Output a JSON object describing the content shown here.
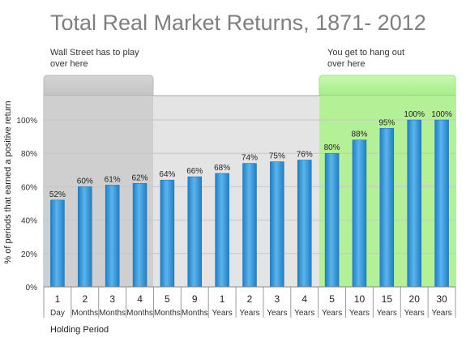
{
  "chart_data": {
    "type": "bar",
    "title": "Total Real Market Returns, 1871- 2012",
    "ylabel": "% of periods that earned a positive return",
    "xlabel": "Holding Period",
    "ylim": [
      0,
      100
    ],
    "y_ticks": [
      "0%",
      "20%",
      "40%",
      "60%",
      "80%",
      "100%"
    ],
    "grid": true,
    "categories": [
      {
        "num": "1",
        "unit": "Day"
      },
      {
        "num": "2",
        "unit": "Months"
      },
      {
        "num": "3",
        "unit": "Months"
      },
      {
        "num": "4",
        "unit": "Months"
      },
      {
        "num": "5",
        "unit": "Months"
      },
      {
        "num": "9",
        "unit": "Months"
      },
      {
        "num": "1",
        "unit": "Years"
      },
      {
        "num": "2",
        "unit": "Years"
      },
      {
        "num": "3",
        "unit": "Years"
      },
      {
        "num": "4",
        "unit": "Years"
      },
      {
        "num": "5",
        "unit": "Years"
      },
      {
        "num": "10",
        "unit": "Years"
      },
      {
        "num": "15",
        "unit": "Years"
      },
      {
        "num": "20",
        "unit": "Years"
      },
      {
        "num": "30",
        "unit": "Years"
      }
    ],
    "values": [
      52,
      60,
      61,
      62,
      64,
      66,
      68,
      74,
      75,
      76,
      80,
      88,
      95,
      100,
      100
    ],
    "data_labels": [
      "52%",
      "60%",
      "61%",
      "62%",
      "64%",
      "66%",
      "68%",
      "74%",
      "75%",
      "76%",
      "80%",
      "88%",
      "95%",
      "100%",
      "100%"
    ],
    "bar_color": "#3a9ad9",
    "annotations": {
      "left": {
        "text": [
          "Wall Street has to play",
          "over here"
        ],
        "color": "#bdbdbd",
        "categories": [
          0,
          3
        ]
      },
      "right": {
        "text": [
          "You get to hang out",
          "over here"
        ],
        "color": "#a6ef8a",
        "categories": [
          10,
          14
        ]
      }
    }
  }
}
